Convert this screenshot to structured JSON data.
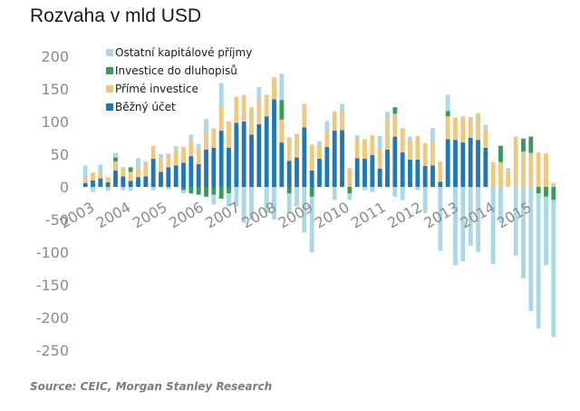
{
  "chart_data": {
    "type": "bar",
    "stacked": true,
    "title": "Rozvaha v mld USD",
    "source": "Source: CEIC, Morgan Stanley Research",
    "ylim": [
      -250,
      200
    ],
    "yticks": [
      200,
      150,
      100,
      50,
      0,
      -50,
      -100,
      -150,
      -200,
      -250
    ],
    "xtick_labels": [
      "2003",
      "2004",
      "2005",
      "2006",
      "2007",
      "2008",
      "2009",
      "2010",
      "2011",
      "2012",
      "2013",
      "2014",
      "2015"
    ],
    "grid": false,
    "legend_position": "top-left",
    "series": [
      {
        "name": "Ostatní kapitálové příjmy",
        "color": "#aad8e6",
        "values": [
          19,
          -8,
          11,
          -6,
          7,
          -5,
          -6,
          15,
          3,
          -5,
          6,
          -4,
          6,
          -5,
          8,
          8,
          20,
          -15,
          35,
          -20,
          -30,
          -55,
          -50,
          20,
          -40,
          -50,
          40,
          -30,
          -30,
          -70,
          -85,
          5,
          15,
          -20,
          10,
          -10,
          5,
          -5,
          -8,
          20,
          8,
          -15,
          -20,
          5,
          -5,
          -40,
          20,
          -98,
          25,
          -120,
          -114,
          -90,
          -100,
          5,
          -118,
          -55,
          5,
          -105,
          -140,
          -190,
          -207,
          -105,
          -210
        ]
      },
      {
        "name": "Investice do dluhopisů",
        "color": "#3a9a5a",
        "values": [
          0,
          0,
          0,
          0,
          6,
          0,
          7,
          0,
          0,
          0,
          0,
          0,
          0,
          -5,
          -10,
          -12,
          -15,
          -12,
          -18,
          -10,
          0,
          0,
          0,
          0,
          0,
          0,
          30,
          -10,
          0,
          0,
          -15,
          0,
          0,
          0,
          0,
          -10,
          0,
          0,
          0,
          0,
          0,
          10,
          0,
          0,
          0,
          0,
          0,
          0,
          8,
          0,
          0,
          0,
          0,
          0,
          0,
          25,
          0,
          0,
          20,
          25,
          -10,
          -15,
          -20
        ]
      },
      {
        "name": "Přímé investice",
        "color": "#f0c87d",
        "values": [
          8,
          12,
          10,
          8,
          14,
          14,
          14,
          14,
          20,
          20,
          21,
          21,
          23,
          24,
          25,
          23,
          27,
          30,
          38,
          40,
          40,
          41,
          42,
          37,
          33,
          34,
          35,
          36,
          36,
          36,
          40,
          22,
          25,
          30,
          30,
          29,
          30,
          30,
          30,
          30,
          50,
          35,
          37,
          30,
          36,
          35,
          37,
          31,
          35,
          34,
          40,
          32,
          41,
          30,
          38,
          38,
          24,
          77,
          54,
          52,
          53,
          51,
          6
        ]
      },
      {
        "name": "Běžný účet",
        "color": "#1f77b4",
        "values": [
          6,
          10,
          13,
          7,
          25,
          16,
          9,
          15,
          16,
          43,
          23,
          30,
          33,
          37,
          47,
          35,
          57,
          60,
          86,
          60,
          98,
          100,
          80,
          96,
          108,
          134,
          68,
          40,
          45,
          91,
          25,
          43,
          61,
          86,
          87,
          0,
          44,
          43,
          49,
          28,
          57,
          77,
          53,
          42,
          42,
          32,
          33,
          8,
          73,
          72,
          68,
          75,
          72,
          60,
          0,
          0,
          0,
          0,
          0,
          0,
          0,
          0,
          0
        ]
      }
    ]
  }
}
